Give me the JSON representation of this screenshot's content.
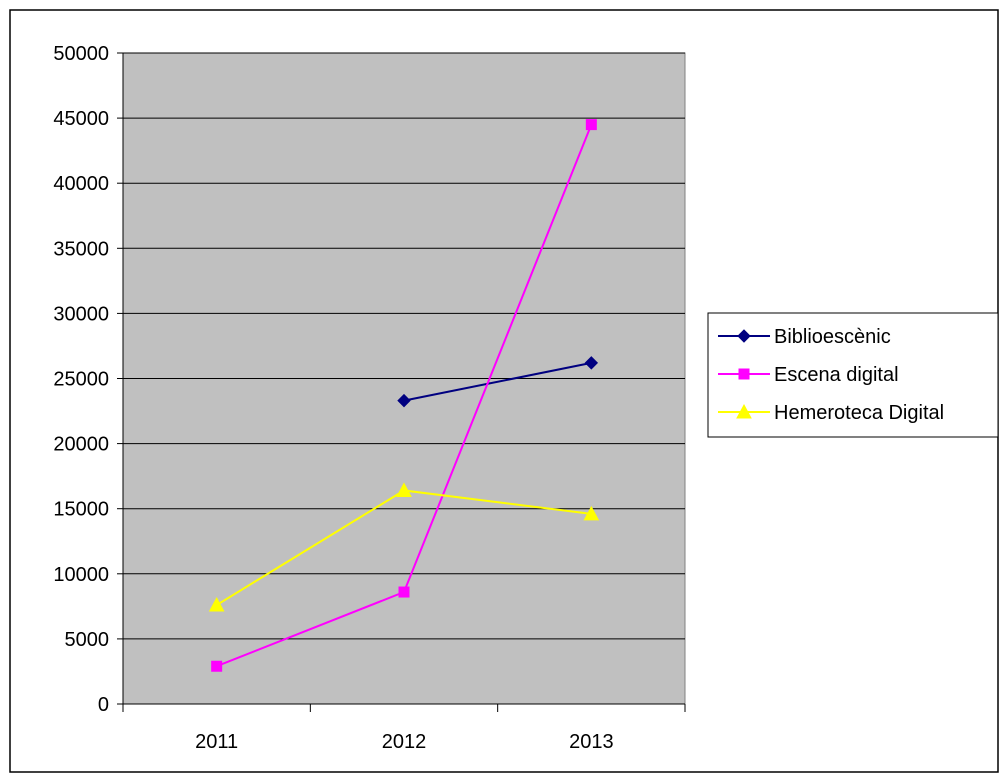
{
  "chart_data": {
    "type": "line",
    "categories": [
      "2011",
      "2012",
      "2013"
    ],
    "series": [
      {
        "name": "Biblioescènic",
        "values": [
          null,
          23300,
          26200
        ],
        "color": "#000080",
        "marker": "diamond"
      },
      {
        "name": "Escena digital",
        "values": [
          2900,
          8600,
          44500
        ],
        "color": "#ff00ff",
        "marker": "square"
      },
      {
        "name": "Hemeroteca Digital",
        "values": [
          7600,
          16400,
          14600
        ],
        "color": "#ffff00",
        "marker": "triangle"
      }
    ],
    "ylim": [
      0,
      50000
    ],
    "yticks": [
      "0",
      "5000",
      "10000",
      "15000",
      "20000",
      "25000",
      "30000",
      "35000",
      "40000",
      "45000",
      "50000"
    ],
    "grid": true,
    "legend": "right",
    "plot_background": "#c0c0c0"
  }
}
